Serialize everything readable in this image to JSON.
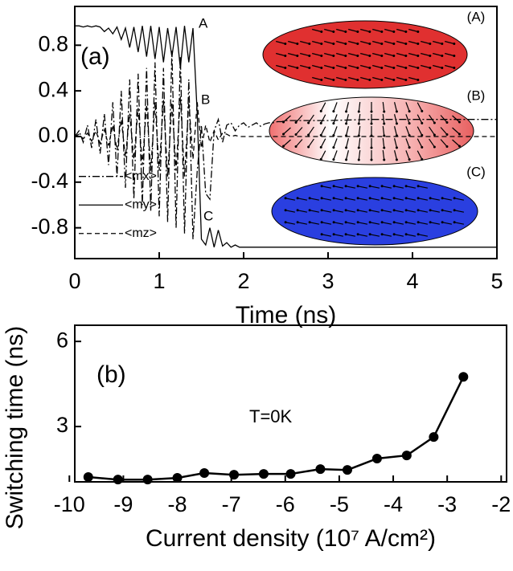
{
  "chart_data": [
    {
      "type": "line",
      "xlabel": "Time (ns)",
      "x": [
        0,
        0.05,
        0.1,
        0.15,
        0.2,
        0.25,
        0.3,
        0.35,
        0.4,
        0.45,
        0.5,
        0.55,
        0.6,
        0.65,
        0.7,
        0.75,
        0.8,
        0.85,
        0.9,
        0.95,
        1.0,
        1.05,
        1.1,
        1.15,
        1.2,
        1.25,
        1.3,
        1.35,
        1.4,
        1.45,
        1.5,
        1.55,
        1.6,
        1.65,
        1.7,
        1.75,
        1.8,
        1.85,
        1.9,
        1.95,
        2.0,
        2.05,
        2.1,
        2.15,
        2.2,
        2.25,
        2.3,
        2.35,
        2.4,
        2.45,
        2.5,
        3,
        3.5,
        4,
        4.5,
        5
      ],
      "series": [
        {
          "name": "<mx>",
          "color": "#000000",
          "linestyle": "dashdot",
          "values": [
            0.0,
            0.05,
            -0.05,
            0.1,
            -0.1,
            0.15,
            -0.15,
            0.2,
            -0.25,
            0.3,
            -0.35,
            0.4,
            -0.45,
            0.5,
            -0.55,
            0.55,
            -0.6,
            0.6,
            -0.65,
            0.65,
            -0.7,
            0.6,
            -0.75,
            0.75,
            -0.8,
            0.7,
            -0.85,
            0.5,
            -0.9,
            -0.3,
            0.1,
            -0.5,
            -0.55,
            0.05,
            0.15,
            -0.05,
            0.1,
            0.12,
            0.05,
            0.1,
            0.12,
            0.08,
            0.1,
            0.12,
            0.09,
            0.11,
            0.12,
            0.12,
            0.13,
            0.13,
            0.14,
            0.14,
            0.15,
            0.15,
            0.15,
            0.15
          ]
        },
        {
          "name": "<my>",
          "color": "#000000",
          "linestyle": "solid",
          "values": [
            0.97,
            0.97,
            0.96,
            0.97,
            0.96,
            0.97,
            0.96,
            0.92,
            0.95,
            0.9,
            0.96,
            0.85,
            0.95,
            0.78,
            0.96,
            0.74,
            0.97,
            0.7,
            0.97,
            0.68,
            0.96,
            0.65,
            0.95,
            0.7,
            0.96,
            0.6,
            0.97,
            0.65,
            0.95,
            0.2,
            -0.9,
            -0.95,
            -0.8,
            -0.97,
            -0.82,
            -0.96,
            -0.93,
            -0.97,
            -0.95,
            -0.97,
            -0.97,
            -0.97,
            -0.97,
            -0.97,
            -0.97,
            -0.97,
            -0.97,
            -0.97,
            -0.97,
            -0.97,
            -0.97,
            -0.97,
            -0.97,
            -0.97,
            -0.97,
            -0.97
          ]
        },
        {
          "name": "<mz>",
          "color": "#000000",
          "linestyle": "dashed",
          "values": [
            0,
            0.02,
            -0.02,
            0.03,
            -0.04,
            0.05,
            -0.06,
            0.06,
            -0.08,
            0.1,
            -0.12,
            0.15,
            -0.18,
            0.2,
            -0.2,
            0.25,
            -0.25,
            0.28,
            -0.3,
            0.3,
            -0.3,
            0.32,
            -0.35,
            0.3,
            -0.3,
            0.35,
            -0.35,
            0.3,
            -0.2,
            0.3,
            -0.1,
            0.1,
            -0.05,
            0.05,
            -0.03,
            0.03,
            0.02,
            0,
            0.01,
            0,
            0,
            0,
            0,
            0,
            0,
            0,
            0,
            0,
            0,
            0,
            0,
            0,
            0,
            0,
            0,
            0
          ]
        }
      ],
      "xlim": [
        0,
        5
      ],
      "xticks": [
        0,
        1,
        2,
        3,
        4,
        5
      ],
      "ylim": [
        -1.07,
        1.14
      ],
      "yticks": [
        -0.8,
        -0.4,
        {
          "value": 0,
          "label": "0.0"
        },
        0.4,
        0.8
      ],
      "legend": "left",
      "annotations": [
        "(a)",
        "A",
        "B",
        "C",
        "(A)",
        "(B)",
        "(C)"
      ]
    },
    {
      "type": "line",
      "xlabel": "Current density (10⁷ A/cm²)",
      "ylabel": "Switching time (ns)",
      "x": [
        -9.65,
        -9.1,
        -8.55,
        -8.0,
        -7.5,
        -6.95,
        -6.4,
        -5.9,
        -5.35,
        -4.85,
        -4.3,
        -3.75,
        -3.25,
        -2.7
      ],
      "values": [
        1.22,
        1.13,
        1.13,
        1.19,
        1.36,
        1.3,
        1.33,
        1.33,
        1.5,
        1.47,
        1.87,
        1.98,
        2.63,
        4.75
      ],
      "color": "#000000",
      "marker": "circle",
      "xlim": [
        -9.9,
        -1.9
      ],
      "xticks": [
        -10,
        -9,
        -8,
        -7,
        -6,
        -5,
        -4,
        -3,
        -2
      ],
      "ylim": [
        1.05,
        6.57
      ],
      "yticks": [
        3,
        6
      ],
      "annotations": [
        "(b)",
        "T=0K"
      ]
    }
  ]
}
